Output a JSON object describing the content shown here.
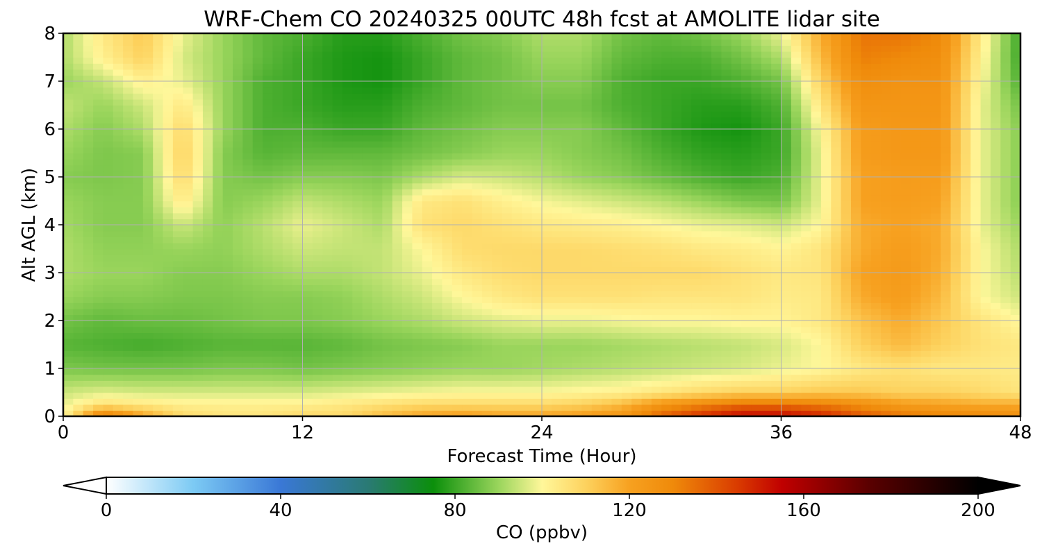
{
  "chart_data": {
    "type": "heatmap",
    "title": "WRF-Chem CO  20240325 00UTC 48h fcst at AMOLITE lidar site",
    "xlabel": "Forecast Time (Hour)",
    "ylabel": "Alt AGL (km)",
    "x_ticks": [
      "0",
      "12",
      "24",
      "36",
      "48"
    ],
    "y_ticks": [
      "0",
      "1",
      "2",
      "3",
      "4",
      "5",
      "6",
      "7",
      "8"
    ],
    "xlim": [
      0,
      48
    ],
    "ylim": [
      0,
      8
    ],
    "grid": true,
    "colorbar": {
      "label": "CO  (ppbv)",
      "range": [
        0,
        200
      ],
      "ticks": [
        "0",
        "40",
        "80",
        "120",
        "160",
        "200"
      ],
      "extend": "both",
      "colors": {
        "0": "#ffffff",
        "20": "#7ccaf4",
        "40": "#3a78d6",
        "60": "#2a7a74",
        "75": "#0b8f0b",
        "90": "#9ad55c",
        "100": "#fff79a",
        "110": "#fdd25e",
        "120": "#f7a120",
        "130": "#ef8a0a",
        "145": "#d93a00",
        "155": "#c00000",
        "175": "#5a0000",
        "200": "#000000"
      }
    },
    "x_hours": [
      0,
      2,
      4,
      6,
      8,
      10,
      12,
      14,
      16,
      18,
      20,
      22,
      24,
      26,
      28,
      30,
      32,
      34,
      36,
      38,
      40,
      42,
      44,
      46,
      48
    ],
    "y_km": [
      0,
      0.25,
      0.5,
      1,
      1.5,
      2,
      2.5,
      3,
      3.5,
      4,
      4.5,
      5,
      5.5,
      6,
      6.5,
      7,
      7.5,
      8
    ],
    "values": [
      [
        100,
        135,
        120,
        108,
        105,
        105,
        108,
        108,
        115,
        120,
        122,
        120,
        120,
        122,
        125,
        138,
        148,
        155,
        155,
        150,
        140,
        135,
        132,
        130,
        128
      ],
      [
        98,
        106,
        104,
        102,
        102,
        102,
        102,
        104,
        106,
        108,
        108,
        108,
        108,
        110,
        115,
        125,
        130,
        135,
        135,
        132,
        128,
        122,
        120,
        118,
        118
      ],
      [
        95,
        97,
        96,
        96,
        96,
        96,
        96,
        97,
        98,
        99,
        100,
        100,
        100,
        101,
        102,
        105,
        108,
        110,
        110,
        112,
        112,
        110,
        110,
        108,
        105
      ],
      [
        87,
        86,
        86,
        86,
        87,
        87,
        86,
        87,
        88,
        89,
        90,
        90,
        91,
        92,
        93,
        94,
        95,
        96,
        98,
        100,
        104,
        106,
        104,
        104,
        103
      ],
      [
        83,
        82,
        81,
        82,
        83,
        83,
        83,
        84,
        86,
        87,
        88,
        90,
        90,
        90,
        91,
        92,
        93,
        94,
        96,
        100,
        110,
        115,
        110,
        106,
        104
      ],
      [
        86,
        84,
        85,
        85,
        86,
        87,
        87,
        88,
        90,
        92,
        95,
        97,
        98,
        98,
        99,
        100,
        100,
        101,
        101,
        104,
        113,
        118,
        112,
        105,
        100
      ],
      [
        90,
        88,
        88,
        87,
        87,
        88,
        88,
        89,
        92,
        95,
        100,
        104,
        106,
        106,
        106,
        105,
        105,
        105,
        103,
        104,
        118,
        122,
        115,
        100,
        95
      ],
      [
        92,
        90,
        90,
        88,
        88,
        90,
        92,
        92,
        94,
        98,
        104,
        107,
        108,
        108,
        108,
        108,
        108,
        106,
        104,
        105,
        120,
        123,
        117,
        100,
        93
      ],
      [
        92,
        89,
        89,
        90,
        89,
        92,
        95,
        94,
        94,
        100,
        107,
        108,
        108,
        108,
        107,
        106,
        104,
        103,
        101,
        105,
        118,
        122,
        118,
        100,
        92
      ],
      [
        91,
        88,
        88,
        95,
        89,
        93,
        98,
        95,
        92,
        106,
        108,
        106,
        104,
        103,
        102,
        100,
        98,
        97,
        95,
        100,
        118,
        120,
        118,
        98,
        90
      ],
      [
        90,
        88,
        88,
        104,
        88,
        90,
        94,
        92,
        90,
        104,
        106,
        102,
        99,
        97,
        95,
        93,
        90,
        87,
        86,
        98,
        120,
        122,
        120,
        98,
        88
      ],
      [
        88,
        87,
        88,
        108,
        88,
        86,
        88,
        88,
        87,
        92,
        96,
        95,
        93,
        90,
        88,
        85,
        82,
        80,
        82,
        98,
        120,
        122,
        122,
        98,
        88
      ],
      [
        90,
        87,
        88,
        110,
        88,
        83,
        84,
        84,
        84,
        86,
        88,
        90,
        90,
        88,
        86,
        82,
        79,
        78,
        80,
        98,
        122,
        124,
        124,
        98,
        88
      ],
      [
        92,
        88,
        92,
        108,
        90,
        82,
        82,
        80,
        80,
        84,
        86,
        88,
        88,
        88,
        84,
        80,
        77,
        76,
        80,
        100,
        122,
        124,
        124,
        98,
        88
      ],
      [
        94,
        90,
        95,
        104,
        90,
        82,
        80,
        78,
        78,
        82,
        84,
        86,
        86,
        86,
        82,
        80,
        78,
        78,
        82,
        105,
        125,
        125,
        125,
        98,
        86
      ],
      [
        90,
        94,
        102,
        98,
        90,
        82,
        80,
        77,
        76,
        80,
        84,
        86,
        88,
        88,
        82,
        80,
        80,
        82,
        86,
        110,
        128,
        126,
        126,
        100,
        82
      ],
      [
        92,
        102,
        110,
        96,
        90,
        84,
        80,
        77,
        76,
        80,
        84,
        86,
        90,
        90,
        84,
        82,
        82,
        86,
        92,
        115,
        132,
        130,
        128,
        102,
        80
      ],
      [
        92,
        104,
        112,
        98,
        90,
        84,
        82,
        78,
        78,
        82,
        86,
        88,
        92,
        92,
        86,
        84,
        86,
        90,
        98,
        118,
        134,
        134,
        130,
        104,
        80
      ]
    ]
  }
}
